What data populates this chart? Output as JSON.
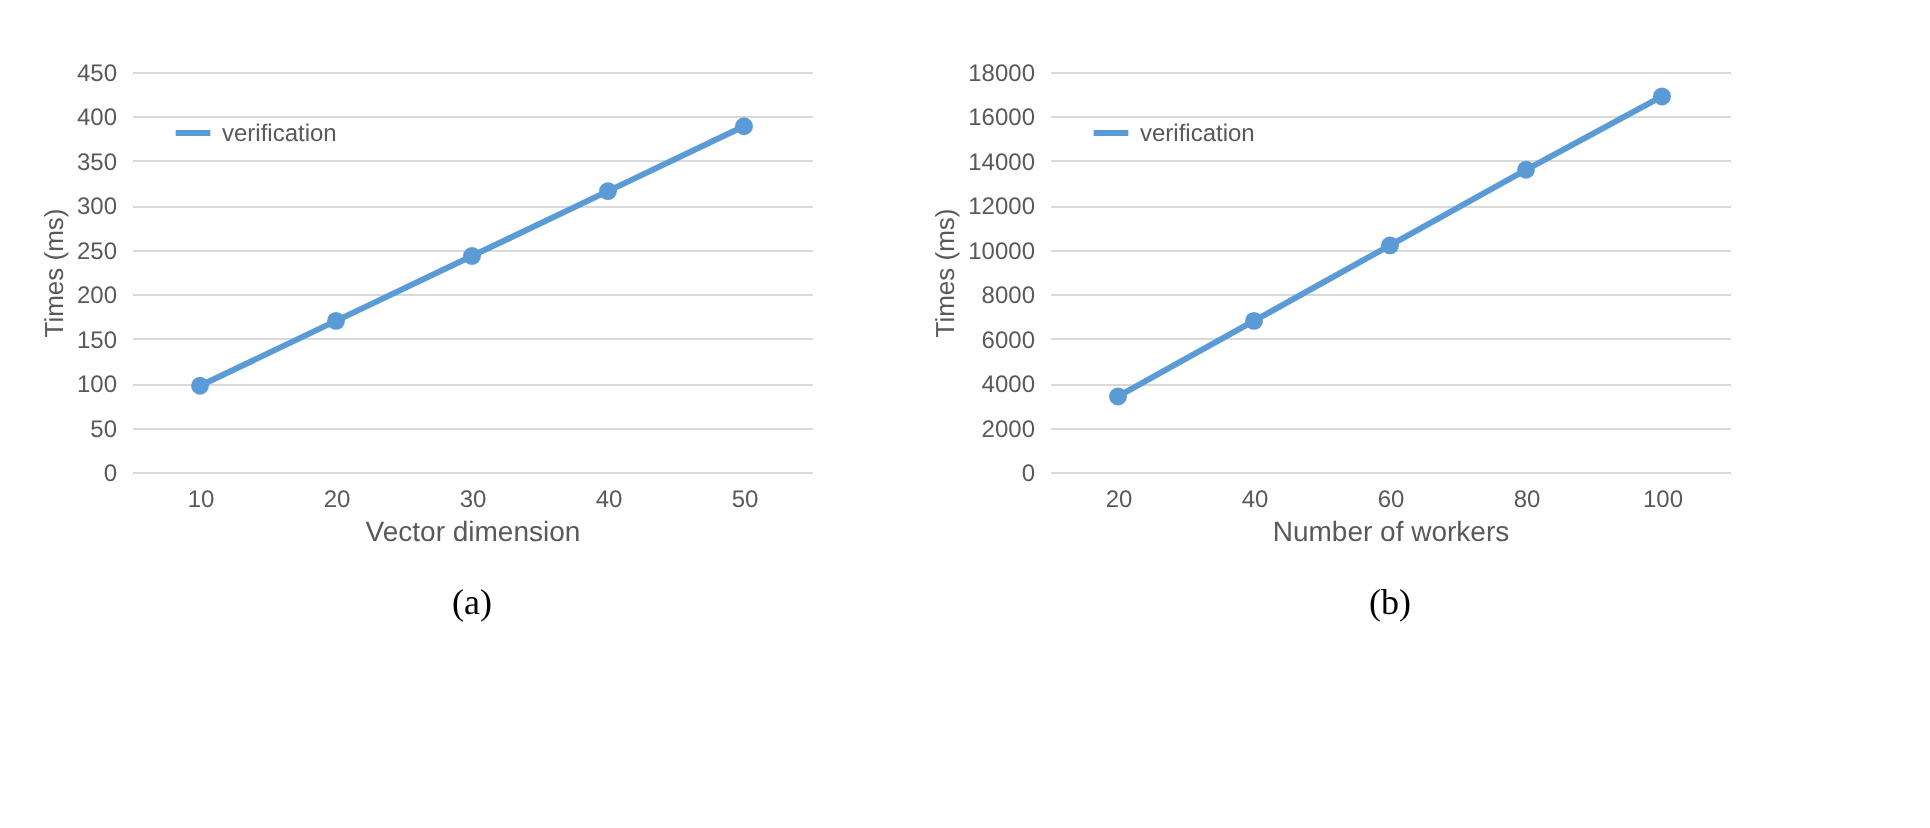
{
  "chart_data": [
    {
      "type": "line",
      "title": "(a)",
      "xlabel": "Vector dimension",
      "ylabel": "Times (ms)",
      "categories": [
        "10",
        "20",
        "30",
        "40",
        "50"
      ],
      "series": [
        {
          "name": "verification",
          "color": "#5b9bd5",
          "values": [
            97,
            170,
            243,
            316,
            389
          ]
        }
      ],
      "ylim": [
        0,
        450
      ],
      "yticks": [
        0,
        50,
        100,
        150,
        200,
        250,
        300,
        350,
        400,
        450
      ],
      "grid": "y",
      "legend": "top left",
      "marker": "circle",
      "line_style": "solid"
    },
    {
      "type": "line",
      "title": "(b)",
      "xlabel": "Number of workers",
      "ylabel": "Times (ms)",
      "categories": [
        "20",
        "40",
        "60",
        "80",
        "100"
      ],
      "series": [
        {
          "name": "verification",
          "color": "#5b9bd5",
          "values": [
            3400,
            6800,
            10200,
            13600,
            16900
          ]
        }
      ],
      "ylim": [
        0,
        18000
      ],
      "yticks": [
        0,
        2000,
        4000,
        6000,
        8000,
        10000,
        12000,
        14000,
        16000,
        18000
      ],
      "grid": "y",
      "legend": "top left",
      "marker": "circle",
      "line_style": "solid"
    }
  ]
}
